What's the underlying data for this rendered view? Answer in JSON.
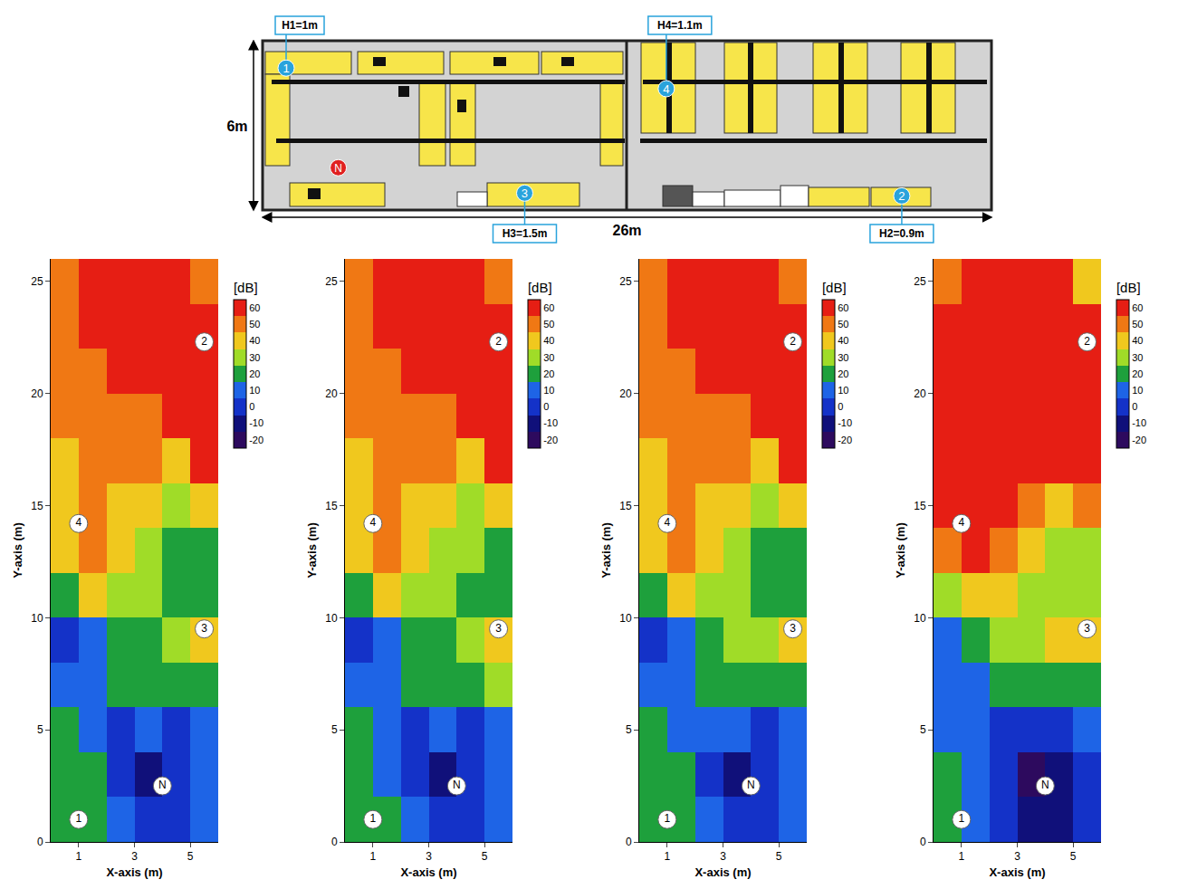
{
  "floor_plan": {
    "width_m": 26,
    "height_m": 6,
    "width_label": "26m",
    "height_label": "6m",
    "markers": [
      {
        "label": "1",
        "height_label": "H1=1m",
        "x_m": 0.84,
        "y_m": 0.97
      },
      {
        "label": "2",
        "height_label": "H2=0.9m",
        "x_m": 22.8,
        "y_m": 5.5
      },
      {
        "label": "3",
        "height_label": "H3=1.5m",
        "x_m": 9.35,
        "y_m": 5.4
      },
      {
        "label": "4",
        "height_label": "H4=1.1m",
        "x_m": 14.4,
        "y_m": 1.7
      }
    ],
    "node": {
      "label": "N",
      "x_m": 2.7,
      "y_m": 4.5
    }
  },
  "chart_data": [
    {
      "type": "heatmap",
      "x_label": "X-axis (m)",
      "y_label": "Y-axis (m)",
      "colorbar_title": "[dB]",
      "xlim": [
        0,
        6
      ],
      "xticks": [
        1,
        3,
        5
      ],
      "ylim": [
        0,
        26
      ],
      "yticks": [
        0,
        5,
        10,
        15,
        20,
        25
      ],
      "zlim": [
        -25,
        65
      ],
      "colorbar_ticks": [
        -20,
        -10,
        0,
        10,
        20,
        30,
        40,
        50,
        60
      ],
      "colors": [
        "#2d0a5e",
        "#10107a",
        "#1432c8",
        "#1e64e6",
        "#1ea03c",
        "#a0dc28",
        "#f0c81e",
        "#f07814",
        "#e61e14"
      ],
      "x": [
        0.5,
        1.5,
        2.5,
        3.5,
        4.5,
        5.5
      ],
      "y": [
        1,
        3,
        5,
        7,
        9,
        11,
        13,
        15,
        17,
        19,
        21,
        23,
        25
      ],
      "z": [
        [
          20,
          20,
          10,
          0,
          0,
          10
        ],
        [
          20,
          20,
          0,
          -10,
          0,
          10
        ],
        [
          20,
          10,
          0,
          10,
          0,
          10
        ],
        [
          10,
          10,
          20,
          20,
          20,
          20
        ],
        [
          0,
          10,
          20,
          20,
          30,
          40
        ],
        [
          20,
          40,
          30,
          30,
          20,
          20
        ],
        [
          40,
          50,
          40,
          30,
          20,
          20
        ],
        [
          40,
          50,
          40,
          40,
          30,
          40
        ],
        [
          40,
          50,
          50,
          50,
          40,
          60
        ],
        [
          50,
          50,
          50,
          50,
          60,
          60
        ],
        [
          50,
          50,
          60,
          60,
          60,
          60
        ],
        [
          50,
          60,
          60,
          60,
          60,
          60
        ],
        [
          50,
          60,
          60,
          60,
          60,
          50
        ]
      ],
      "markers": [
        {
          "label": "1",
          "x": 1,
          "y": 1
        },
        {
          "label": "N",
          "x": 4,
          "y": 2.5
        },
        {
          "label": "3",
          "x": 5.5,
          "y": 9.5
        },
        {
          "label": "4",
          "x": 1,
          "y": 14.2
        },
        {
          "label": "2",
          "x": 5.5,
          "y": 22.3
        }
      ]
    },
    {
      "type": "heatmap",
      "x_label": "X-axis (m)",
      "y_label": "Y-axis (m)",
      "colorbar_title": "[dB]",
      "xlim": [
        0,
        6
      ],
      "xticks": [
        1,
        3,
        5
      ],
      "ylim": [
        0,
        26
      ],
      "yticks": [
        0,
        5,
        10,
        15,
        20,
        25
      ],
      "zlim": [
        -25,
        65
      ],
      "colorbar_ticks": [
        -20,
        -10,
        0,
        10,
        20,
        30,
        40,
        50,
        60
      ],
      "colors": [
        "#2d0a5e",
        "#10107a",
        "#1432c8",
        "#1e64e6",
        "#1ea03c",
        "#a0dc28",
        "#f0c81e",
        "#f07814",
        "#e61e14"
      ],
      "x": [
        0.5,
        1.5,
        2.5,
        3.5,
        4.5,
        5.5
      ],
      "y": [
        1,
        3,
        5,
        7,
        9,
        11,
        13,
        15,
        17,
        19,
        21,
        23,
        25
      ],
      "z": [
        [
          20,
          20,
          10,
          0,
          0,
          10
        ],
        [
          20,
          10,
          0,
          -10,
          0,
          10
        ],
        [
          20,
          10,
          0,
          10,
          0,
          10
        ],
        [
          10,
          10,
          20,
          20,
          20,
          30
        ],
        [
          0,
          10,
          20,
          20,
          30,
          40
        ],
        [
          20,
          40,
          30,
          30,
          20,
          20
        ],
        [
          40,
          50,
          40,
          30,
          30,
          20
        ],
        [
          40,
          50,
          40,
          40,
          30,
          40
        ],
        [
          40,
          50,
          50,
          50,
          40,
          60
        ],
        [
          50,
          50,
          50,
          50,
          60,
          60
        ],
        [
          50,
          50,
          60,
          60,
          60,
          60
        ],
        [
          50,
          60,
          60,
          60,
          60,
          60
        ],
        [
          50,
          60,
          60,
          60,
          60,
          50
        ]
      ],
      "markers": [
        {
          "label": "1",
          "x": 1,
          "y": 1
        },
        {
          "label": "N",
          "x": 4,
          "y": 2.5
        },
        {
          "label": "3",
          "x": 5.5,
          "y": 9.5
        },
        {
          "label": "4",
          "x": 1,
          "y": 14.2
        },
        {
          "label": "2",
          "x": 5.5,
          "y": 22.3
        }
      ]
    },
    {
      "type": "heatmap",
      "x_label": "X-axis (m)",
      "y_label": "Y-axis (m)",
      "colorbar_title": "[dB]",
      "xlim": [
        0,
        6
      ],
      "xticks": [
        1,
        3,
        5
      ],
      "ylim": [
        0,
        26
      ],
      "yticks": [
        0,
        5,
        10,
        15,
        20,
        25
      ],
      "zlim": [
        -25,
        65
      ],
      "colorbar_ticks": [
        -20,
        -10,
        0,
        10,
        20,
        30,
        40,
        50,
        60
      ],
      "colors": [
        "#2d0a5e",
        "#10107a",
        "#1432c8",
        "#1e64e6",
        "#1ea03c",
        "#a0dc28",
        "#f0c81e",
        "#f07814",
        "#e61e14"
      ],
      "x": [
        0.5,
        1.5,
        2.5,
        3.5,
        4.5,
        5.5
      ],
      "y": [
        1,
        3,
        5,
        7,
        9,
        11,
        13,
        15,
        17,
        19,
        21,
        23,
        25
      ],
      "z": [
        [
          20,
          20,
          10,
          0,
          0,
          10
        ],
        [
          20,
          20,
          0,
          -10,
          0,
          10
        ],
        [
          20,
          10,
          10,
          10,
          0,
          10
        ],
        [
          10,
          10,
          20,
          20,
          20,
          20
        ],
        [
          0,
          10,
          20,
          30,
          30,
          40
        ],
        [
          20,
          40,
          30,
          30,
          20,
          20
        ],
        [
          40,
          50,
          40,
          30,
          20,
          20
        ],
        [
          40,
          50,
          40,
          40,
          30,
          40
        ],
        [
          40,
          50,
          50,
          50,
          40,
          60
        ],
        [
          50,
          50,
          50,
          50,
          60,
          60
        ],
        [
          50,
          50,
          60,
          60,
          60,
          60
        ],
        [
          50,
          60,
          60,
          60,
          60,
          60
        ],
        [
          50,
          60,
          60,
          60,
          60,
          50
        ]
      ],
      "markers": [
        {
          "label": "1",
          "x": 1,
          "y": 1
        },
        {
          "label": "N",
          "x": 4,
          "y": 2.5
        },
        {
          "label": "3",
          "x": 5.5,
          "y": 9.5
        },
        {
          "label": "4",
          "x": 1,
          "y": 14.2
        },
        {
          "label": "2",
          "x": 5.5,
          "y": 22.3
        }
      ]
    },
    {
      "type": "heatmap",
      "x_label": "X-axis (m)",
      "y_label": "Y-axis (m)",
      "colorbar_title": "[dB]",
      "xlim": [
        0,
        6
      ],
      "xticks": [
        1,
        3,
        5
      ],
      "ylim": [
        0,
        26
      ],
      "yticks": [
        0,
        5,
        10,
        15,
        20,
        25
      ],
      "zlim": [
        -25,
        65
      ],
      "colorbar_ticks": [
        -20,
        -10,
        0,
        10,
        20,
        30,
        40,
        50,
        60
      ],
      "colors": [
        "#2d0a5e",
        "#10107a",
        "#1432c8",
        "#1e64e6",
        "#1ea03c",
        "#a0dc28",
        "#f0c81e",
        "#f07814",
        "#e61e14"
      ],
      "x": [
        0.5,
        1.5,
        2.5,
        3.5,
        4.5,
        5.5
      ],
      "y": [
        1,
        3,
        5,
        7,
        9,
        11,
        13,
        15,
        17,
        19,
        21,
        23,
        25
      ],
      "z": [
        [
          20,
          10,
          0,
          -10,
          -10,
          0
        ],
        [
          20,
          10,
          0,
          -20,
          -10,
          0
        ],
        [
          10,
          10,
          0,
          0,
          0,
          10
        ],
        [
          10,
          10,
          20,
          20,
          20,
          20
        ],
        [
          10,
          20,
          30,
          30,
          40,
          40
        ],
        [
          30,
          40,
          40,
          30,
          30,
          30
        ],
        [
          50,
          60,
          50,
          40,
          30,
          30
        ],
        [
          60,
          60,
          60,
          50,
          40,
          50
        ],
        [
          60,
          60,
          60,
          60,
          60,
          60
        ],
        [
          60,
          60,
          60,
          60,
          60,
          60
        ],
        [
          60,
          60,
          60,
          60,
          60,
          60
        ],
        [
          60,
          60,
          60,
          60,
          60,
          60
        ],
        [
          50,
          60,
          60,
          60,
          60,
          40
        ]
      ],
      "markers": [
        {
          "label": "1",
          "x": 1,
          "y": 1
        },
        {
          "label": "N",
          "x": 4,
          "y": 2.5
        },
        {
          "label": "3",
          "x": 5.5,
          "y": 9.5
        },
        {
          "label": "4",
          "x": 1,
          "y": 14.2
        },
        {
          "label": "2",
          "x": 5.5,
          "y": 22.3
        }
      ]
    }
  ]
}
